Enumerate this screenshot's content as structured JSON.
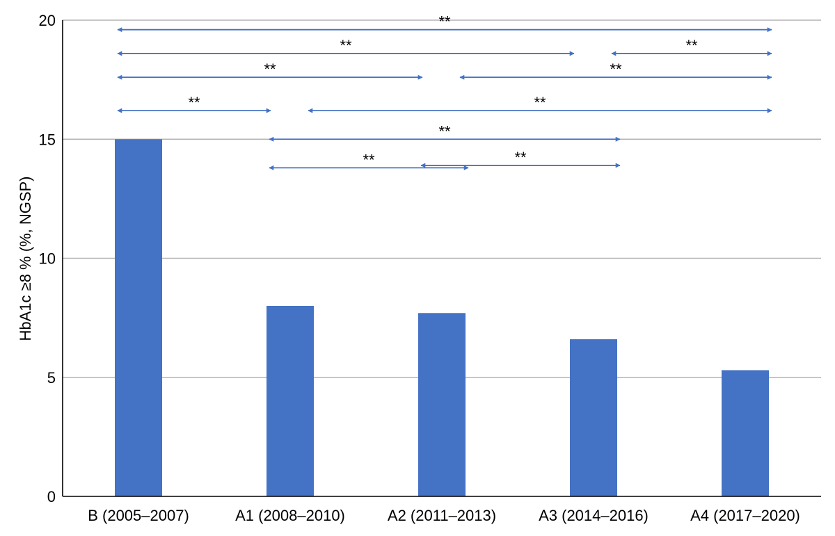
{
  "chart_data": {
    "type": "bar",
    "categories": [
      "B (2005–2007)",
      "A1 (2008–2010)",
      "A2 (2011–2013)",
      "A3 (2014–2016)",
      "A4 (2017–2020)"
    ],
    "values": [
      15.0,
      8.0,
      7.7,
      6.6,
      5.3
    ],
    "title": "",
    "xlabel": "",
    "ylabel": "HbA1c ≥8 % (%, NGSP)",
    "ylim": [
      0,
      20
    ],
    "yticks": [
      0,
      5,
      10,
      15,
      20
    ],
    "ytick_labels": [
      "0",
      "5",
      "10",
      "15",
      "20"
    ],
    "grid": true,
    "bar_color": "#4472C4",
    "arrow_color": "#4472C4",
    "comparisons": [
      {
        "from": "B (2005–2007)",
        "to": "A4 (2017–2020)",
        "label": "**",
        "level": 19.6
      },
      {
        "from": "B (2005–2007)",
        "to": "A3 (2014–2016)",
        "label": "**",
        "level": 18.6
      },
      {
        "from": "A3 (2014–2016)",
        "to": "A4 (2017–2020)",
        "label": "**",
        "level": 18.6
      },
      {
        "from": "B (2005–2007)",
        "to": "A2 (2011–2013)",
        "label": "**",
        "level": 17.6
      },
      {
        "from": "A2 (2011–2013)",
        "to": "A4 (2017–2020)",
        "label": "**",
        "level": 17.6
      },
      {
        "from": "B (2005–2007)",
        "to": "A1 (2008–2010)",
        "label": "**",
        "level": 16.2
      },
      {
        "from": "A1 (2008–2010)",
        "to": "A4 (2017–2020)",
        "label": "**",
        "level": 16.2
      },
      {
        "from": "A1 (2008–2010)",
        "to": "A3 (2014–2016)",
        "label": "**",
        "level": 15.0
      },
      {
        "from": "A1 (2008–2010)",
        "to": "A2 (2011–2013)",
        "label": "**",
        "level": 13.8
      },
      {
        "from": "A2 (2011–2013)",
        "to": "A3 (2014–2016)",
        "label": "**",
        "level": 13.9
      }
    ]
  }
}
